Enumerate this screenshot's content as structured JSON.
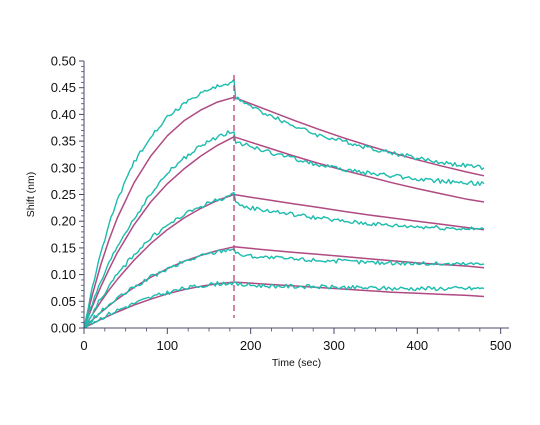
{
  "chart_data": {
    "type": "line",
    "title": "",
    "xlabel": "Time (sec)",
    "ylabel": "Shift (nm)",
    "xlim": [
      0,
      510
    ],
    "ylim": [
      0,
      0.5
    ],
    "x_ticks": [
      "0",
      "100",
      "200",
      "300",
      "400",
      "500"
    ],
    "y_ticks": [
      "0.00",
      "0.05",
      "0.10",
      "0.15",
      "0.20",
      "0.25",
      "0.30",
      "0.35",
      "0.40",
      "0.45",
      "0.50"
    ],
    "grid": false,
    "legend": "none",
    "event_line_x": 180,
    "colors": {
      "measured": "#1cbcae",
      "fit": "#b04a82",
      "event": "#c0407a",
      "axis": "#4a4a6a"
    },
    "series": [
      {
        "group": "measured",
        "x": [
          0,
          10,
          20,
          30,
          40,
          60,
          80,
          100,
          120,
          140,
          160,
          180,
          182,
          190,
          200,
          220,
          250,
          280,
          310,
          340,
          370,
          400,
          430,
          460,
          480
        ],
        "values": [
          0.0,
          0.075,
          0.14,
          0.195,
          0.24,
          0.31,
          0.36,
          0.395,
          0.42,
          0.44,
          0.452,
          0.462,
          0.43,
          0.425,
          0.415,
          0.4,
          0.38,
          0.362,
          0.35,
          0.338,
          0.328,
          0.318,
          0.31,
          0.304,
          0.3
        ]
      },
      {
        "group": "measured",
        "x": [
          0,
          10,
          20,
          30,
          40,
          60,
          80,
          100,
          120,
          140,
          160,
          180,
          182,
          190,
          200,
          220,
          250,
          280,
          310,
          340,
          370,
          400,
          430,
          460,
          480
        ],
        "values": [
          0.0,
          0.045,
          0.085,
          0.12,
          0.153,
          0.205,
          0.25,
          0.29,
          0.318,
          0.34,
          0.358,
          0.37,
          0.35,
          0.345,
          0.34,
          0.33,
          0.318,
          0.306,
          0.297,
          0.29,
          0.285,
          0.279,
          0.275,
          0.272,
          0.27
        ]
      },
      {
        "group": "measured",
        "x": [
          0,
          10,
          20,
          30,
          40,
          60,
          80,
          100,
          120,
          140,
          160,
          180,
          182,
          190,
          200,
          220,
          250,
          280,
          310,
          340,
          370,
          400,
          430,
          460,
          480
        ],
        "values": [
          0.0,
          0.028,
          0.055,
          0.078,
          0.1,
          0.138,
          0.168,
          0.192,
          0.212,
          0.228,
          0.24,
          0.25,
          0.232,
          0.228,
          0.225,
          0.22,
          0.213,
          0.206,
          0.2,
          0.196,
          0.192,
          0.19,
          0.188,
          0.186,
          0.185
        ]
      },
      {
        "group": "measured",
        "x": [
          0,
          10,
          20,
          30,
          40,
          60,
          80,
          100,
          120,
          140,
          160,
          180,
          182,
          190,
          200,
          220,
          250,
          280,
          310,
          340,
          370,
          400,
          430,
          460,
          480
        ],
        "values": [
          0.0,
          0.016,
          0.03,
          0.043,
          0.055,
          0.076,
          0.095,
          0.11,
          0.124,
          0.135,
          0.143,
          0.15,
          0.14,
          0.137,
          0.135,
          0.132,
          0.129,
          0.127,
          0.125,
          0.123,
          0.122,
          0.121,
          0.12,
          0.12,
          0.12
        ]
      },
      {
        "group": "measured",
        "x": [
          0,
          10,
          20,
          30,
          40,
          60,
          80,
          100,
          120,
          140,
          160,
          180,
          182,
          190,
          200,
          220,
          250,
          280,
          310,
          340,
          370,
          400,
          430,
          460,
          480
        ],
        "values": [
          0.0,
          0.01,
          0.018,
          0.026,
          0.033,
          0.046,
          0.057,
          0.066,
          0.074,
          0.079,
          0.083,
          0.085,
          0.082,
          0.081,
          0.08,
          0.079,
          0.078,
          0.077,
          0.076,
          0.075,
          0.074,
          0.074,
          0.074,
          0.074,
          0.074
        ]
      },
      {
        "group": "fit",
        "x": [
          0,
          10,
          20,
          30,
          40,
          60,
          80,
          100,
          120,
          140,
          160,
          180,
          200,
          220,
          250,
          280,
          310,
          340,
          370,
          400,
          430,
          460,
          480
        ],
        "values": [
          0.0,
          0.062,
          0.118,
          0.165,
          0.206,
          0.272,
          0.322,
          0.36,
          0.388,
          0.408,
          0.423,
          0.432,
          0.42,
          0.408,
          0.39,
          0.373,
          0.357,
          0.342,
          0.328,
          0.315,
          0.303,
          0.292,
          0.285
        ]
      },
      {
        "group": "fit",
        "x": [
          0,
          10,
          20,
          30,
          40,
          60,
          80,
          100,
          120,
          140,
          160,
          180,
          200,
          220,
          250,
          280,
          310,
          340,
          370,
          400,
          430,
          460,
          480
        ],
        "values": [
          0.0,
          0.04,
          0.077,
          0.11,
          0.141,
          0.193,
          0.236,
          0.27,
          0.298,
          0.322,
          0.342,
          0.358,
          0.348,
          0.338,
          0.323,
          0.309,
          0.296,
          0.284,
          0.272,
          0.261,
          0.251,
          0.241,
          0.236
        ]
      },
      {
        "group": "fit",
        "x": [
          0,
          10,
          20,
          30,
          40,
          60,
          80,
          100,
          120,
          140,
          160,
          180,
          200,
          220,
          250,
          280,
          310,
          340,
          370,
          400,
          430,
          460,
          480
        ],
        "values": [
          0.0,
          0.025,
          0.049,
          0.071,
          0.091,
          0.127,
          0.158,
          0.184,
          0.206,
          0.224,
          0.239,
          0.25,
          0.245,
          0.24,
          0.233,
          0.226,
          0.219,
          0.212,
          0.206,
          0.2,
          0.194,
          0.188,
          0.184
        ]
      },
      {
        "group": "fit",
        "x": [
          0,
          10,
          20,
          30,
          40,
          60,
          80,
          100,
          120,
          140,
          160,
          180,
          200,
          220,
          250,
          280,
          310,
          340,
          370,
          400,
          430,
          460,
          480
        ],
        "values": [
          0.0,
          0.015,
          0.029,
          0.042,
          0.054,
          0.076,
          0.095,
          0.111,
          0.125,
          0.136,
          0.145,
          0.152,
          0.149,
          0.146,
          0.142,
          0.138,
          0.134,
          0.13,
          0.126,
          0.122,
          0.119,
          0.116,
          0.113
        ]
      },
      {
        "group": "fit",
        "x": [
          0,
          10,
          20,
          30,
          40,
          60,
          80,
          100,
          120,
          140,
          160,
          180,
          200,
          220,
          250,
          280,
          310,
          340,
          370,
          400,
          430,
          460,
          480
        ],
        "values": [
          0.0,
          0.008,
          0.016,
          0.023,
          0.03,
          0.043,
          0.054,
          0.064,
          0.072,
          0.078,
          0.083,
          0.086,
          0.084,
          0.082,
          0.079,
          0.076,
          0.073,
          0.07,
          0.067,
          0.065,
          0.063,
          0.061,
          0.059
        ]
      }
    ]
  }
}
